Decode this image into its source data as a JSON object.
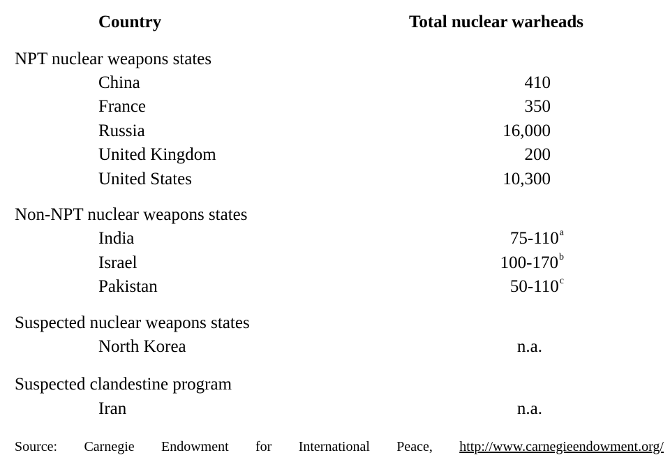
{
  "table": {
    "header": {
      "country": "Country",
      "total": "Total nuclear warheads"
    },
    "sections": [
      {
        "title": "NPT nuclear weapons states",
        "rows": [
          {
            "country": "China",
            "value": "410",
            "note": ""
          },
          {
            "country": "France",
            "value": "350",
            "note": ""
          },
          {
            "country": "Russia",
            "value": "16,000",
            "note": ""
          },
          {
            "country": "United Kingdom",
            "value": "200",
            "note": ""
          },
          {
            "country": "United States",
            "value": "10,300",
            "note": ""
          }
        ]
      },
      {
        "title": "Non-NPT nuclear weapons states",
        "rows": [
          {
            "country": "India",
            "value": "75-110",
            "note": "a"
          },
          {
            "country": "Israel",
            "value": "100-170",
            "note": "b"
          },
          {
            "country": "Pakistan",
            "value": "50-110",
            "note": "c"
          }
        ]
      },
      {
        "title": "Suspected nuclear weapons states",
        "rows": [
          {
            "country": "North Korea",
            "value": "n.a.",
            "note": ""
          }
        ]
      },
      {
        "title": "Suspected clandestine program",
        "rows": [
          {
            "country": "Iran",
            "value": "n.a.",
            "note": ""
          }
        ]
      }
    ]
  },
  "source": {
    "words": [
      "Source:",
      "Carnegie",
      "Endowment",
      "for",
      "International",
      "Peace,"
    ],
    "link": "http://www.carnegieendowment.org/"
  }
}
